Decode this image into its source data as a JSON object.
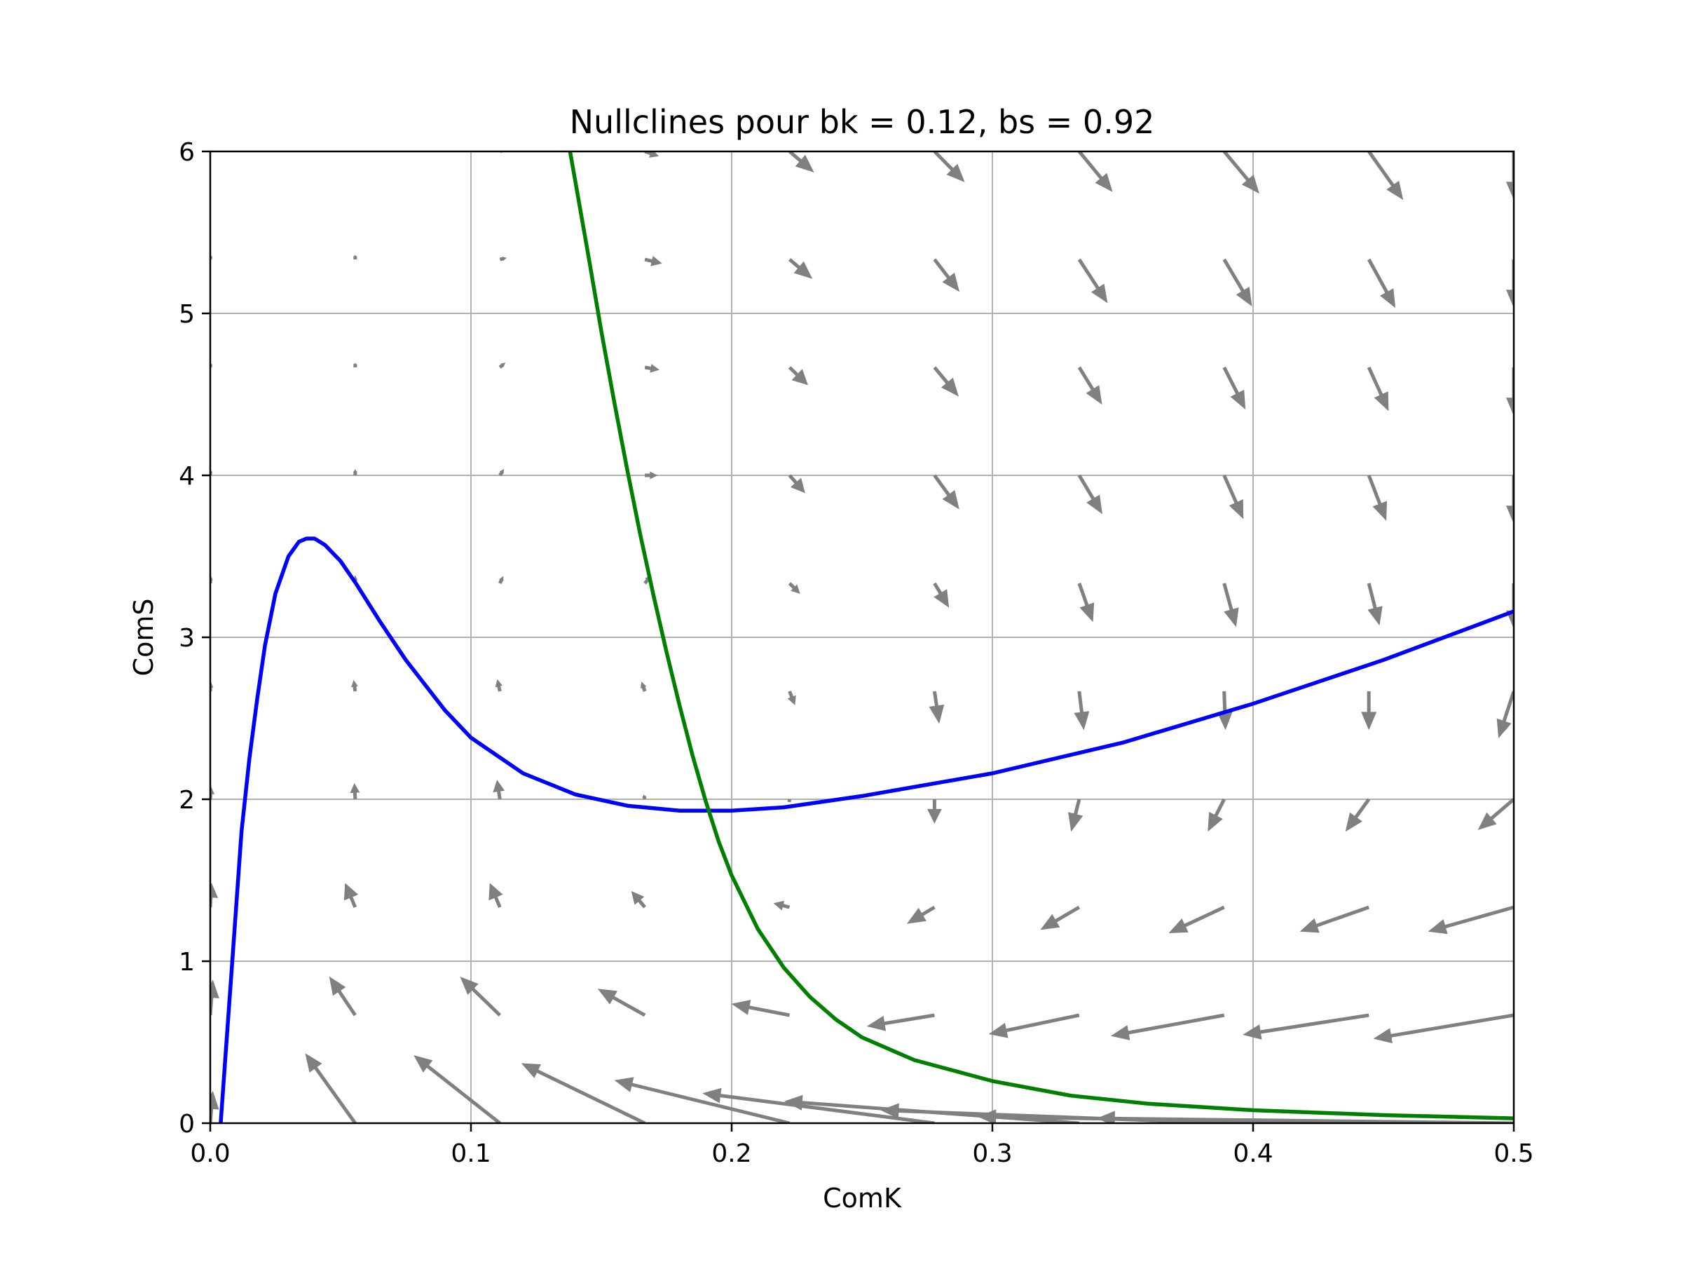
{
  "chart_data": {
    "type": "line",
    "title": "Nullclines pour bk = 0.12, bs = 0.92",
    "xlabel": "ComK",
    "ylabel": "ComS",
    "xlim": [
      0.0,
      0.5
    ],
    "ylim": [
      0,
      6
    ],
    "xticks": [
      "0.0",
      "0.1",
      "0.2",
      "0.3",
      "0.4",
      "0.5"
    ],
    "yticks": [
      "0",
      "1",
      "2",
      "3",
      "4",
      "5",
      "6"
    ],
    "grid": true,
    "colors": {
      "comk_nullcline": "#0000ff",
      "coms_nullcline": "#008000",
      "vector_field": "#808080",
      "grid": "#b0b0b0"
    },
    "series": [
      {
        "kind": "line",
        "color": "#0000ff",
        "x": [
          0.004,
          0.006,
          0.008,
          0.01,
          0.012,
          0.015,
          0.018,
          0.021,
          0.025,
          0.03,
          0.034,
          0.037,
          0.04,
          0.044,
          0.05,
          0.056,
          0.065,
          0.075,
          0.09,
          0.1,
          0.12,
          0.14,
          0.16,
          0.18,
          0.2,
          0.22,
          0.25,
          0.3,
          0.35,
          0.4,
          0.45,
          0.5
        ],
        "y": [
          0.0,
          0.45,
          0.9,
          1.35,
          1.8,
          2.25,
          2.62,
          2.95,
          3.27,
          3.5,
          3.59,
          3.61,
          3.61,
          3.57,
          3.47,
          3.33,
          3.1,
          2.86,
          2.55,
          2.38,
          2.16,
          2.03,
          1.96,
          1.93,
          1.93,
          1.95,
          2.02,
          2.16,
          2.35,
          2.59,
          2.86,
          3.16
        ]
      },
      {
        "kind": "line",
        "color": "#008000",
        "x": [
          0.138,
          0.145,
          0.15,
          0.155,
          0.16,
          0.165,
          0.17,
          0.175,
          0.18,
          0.185,
          0.19,
          0.195,
          0.2,
          0.21,
          0.22,
          0.23,
          0.24,
          0.25,
          0.27,
          0.3,
          0.33,
          0.36,
          0.4,
          0.45,
          0.5
        ],
        "y": [
          6.0,
          5.36,
          4.89,
          4.45,
          4.03,
          3.63,
          3.26,
          2.91,
          2.58,
          2.27,
          1.99,
          1.74,
          1.53,
          1.2,
          0.96,
          0.78,
          0.64,
          0.53,
          0.39,
          0.26,
          0.17,
          0.12,
          0.08,
          0.05,
          0.03
        ]
      }
    ],
    "quiver": {
      "color": "#808080",
      "x": [
        0.0,
        0.0556,
        0.1111,
        0.1667,
        0.2222,
        0.2778,
        0.3333,
        0.3889,
        0.4444,
        0.5
      ],
      "y": [
        0,
        0.6667,
        1.3333,
        2.0,
        2.6667,
        3.3333,
        4.0,
        4.6667,
        5.3333,
        6.0
      ],
      "vectors": [
        [
          [
            0.001,
            0.2
          ],
          [
            -0.0192,
            0.432
          ],
          [
            -0.0331,
            0.42
          ],
          [
            -0.0474,
            0.37
          ],
          [
            -0.0672,
            0.265
          ],
          [
            -0.089,
            0.185
          ],
          [
            -0.1132,
            0.135
          ],
          [
            -0.1318,
            0.08
          ],
          [
            -0.15,
            0.04
          ],
          [
            -0.16,
            0.03
          ]
        ],
        [
          [
            0.001,
            0.22
          ],
          [
            -0.01,
            0.24
          ],
          [
            -0.0153,
            0.238
          ],
          [
            -0.0181,
            0.163
          ],
          [
            -0.0223,
            0.07
          ],
          [
            -0.026,
            -0.069
          ],
          [
            -0.0347,
            -0.117
          ],
          [
            -0.0435,
            -0.128
          ],
          [
            -0.0484,
            -0.121
          ],
          [
            -0.0539,
            -0.145
          ]
        ],
        [
          [
            0.0005,
            0.15
          ],
          [
            -0.0039,
            0.15
          ],
          [
            -0.0039,
            0.15
          ],
          [
            -0.0052,
            0.1
          ],
          [
            -0.0062,
            0.025
          ],
          [
            -0.0106,
            -0.102
          ],
          [
            -0.0149,
            -0.14
          ],
          [
            -0.0213,
            -0.16
          ],
          [
            -0.0265,
            -0.15
          ],
          [
            -0.0329,
            -0.15
          ]
        ],
        [
          [
            0.0003,
            0.08
          ],
          [
            -0.0003,
            0.1
          ],
          [
            -0.0011,
            0.12
          ],
          [
            -0.0005,
            0.03
          ],
          [
            -0.0002,
            -0.02
          ],
          [
            0.0,
            -0.15
          ],
          [
            -0.0031,
            -0.2
          ],
          [
            -0.0063,
            -0.2
          ],
          [
            -0.009,
            -0.2
          ],
          [
            -0.0138,
            -0.19
          ]
        ],
        [
          [
            0.0002,
            0.06
          ],
          [
            -0.0006,
            0.07
          ],
          [
            -0.001,
            0.075
          ],
          [
            -0.0013,
            0.06
          ],
          [
            0.0021,
            -0.086
          ],
          [
            0.0018,
            -0.2
          ],
          [
            0.0018,
            -0.24
          ],
          [
            0.0005,
            -0.24
          ],
          [
            0.0,
            -0.24
          ],
          [
            -0.0059,
            -0.29
          ]
        ],
        [
          [
            0.0002,
            0.05
          ],
          [
            0.0,
            0.05
          ],
          [
            0.0013,
            0.045
          ],
          [
            0.0025,
            0.05
          ],
          [
            0.0041,
            -0.065
          ],
          [
            0.0056,
            -0.15
          ],
          [
            0.0053,
            -0.24
          ],
          [
            0.0046,
            -0.27
          ],
          [
            0.0041,
            -0.26
          ],
          [
            0.0,
            -0.28
          ]
        ],
        [
          [
            0.0001,
            0.04
          ],
          [
            0.0,
            0.04
          ],
          [
            0.0016,
            0.04
          ],
          [
            0.0049,
            0.0
          ],
          [
            0.006,
            -0.11
          ],
          [
            0.0095,
            -0.21
          ],
          [
            0.0089,
            -0.24
          ],
          [
            0.0074,
            -0.27
          ],
          [
            0.0067,
            -0.28
          ],
          [
            0.0,
            -0.3
          ]
        ],
        [
          [
            0.0001,
            0.03
          ],
          [
            0.0,
            0.03
          ],
          [
            0.0021,
            0.03
          ],
          [
            0.0056,
            -0.015
          ],
          [
            0.0071,
            -0.11
          ],
          [
            0.0093,
            -0.18
          ],
          [
            0.0088,
            -0.23
          ],
          [
            0.0082,
            -0.26
          ],
          [
            0.0076,
            -0.27
          ],
          [
            0.0,
            -0.3
          ]
        ],
        [
          [
            0.0001,
            0.03
          ],
          [
            0.0,
            0.03
          ],
          [
            0.0026,
            0.01
          ],
          [
            0.0066,
            -0.025
          ],
          [
            0.0088,
            -0.12
          ],
          [
            0.0096,
            -0.2
          ],
          [
            0.0109,
            -0.27
          ],
          [
            0.0107,
            -0.29
          ],
          [
            0.0102,
            -0.3
          ],
          [
            0.0,
            -0.3
          ]
        ],
        [
          [
            0.0,
            0.02
          ],
          [
            0.0,
            0.01
          ],
          [
            0.0015,
            0.01
          ],
          [
            0.0054,
            -0.03
          ],
          [
            0.0094,
            -0.13
          ],
          [
            0.0116,
            -0.19
          ],
          [
            0.0128,
            -0.25
          ],
          [
            0.0135,
            -0.26
          ],
          [
            0.0132,
            -0.3
          ],
          [
            0.0,
            -0.3
          ]
        ]
      ]
    }
  }
}
